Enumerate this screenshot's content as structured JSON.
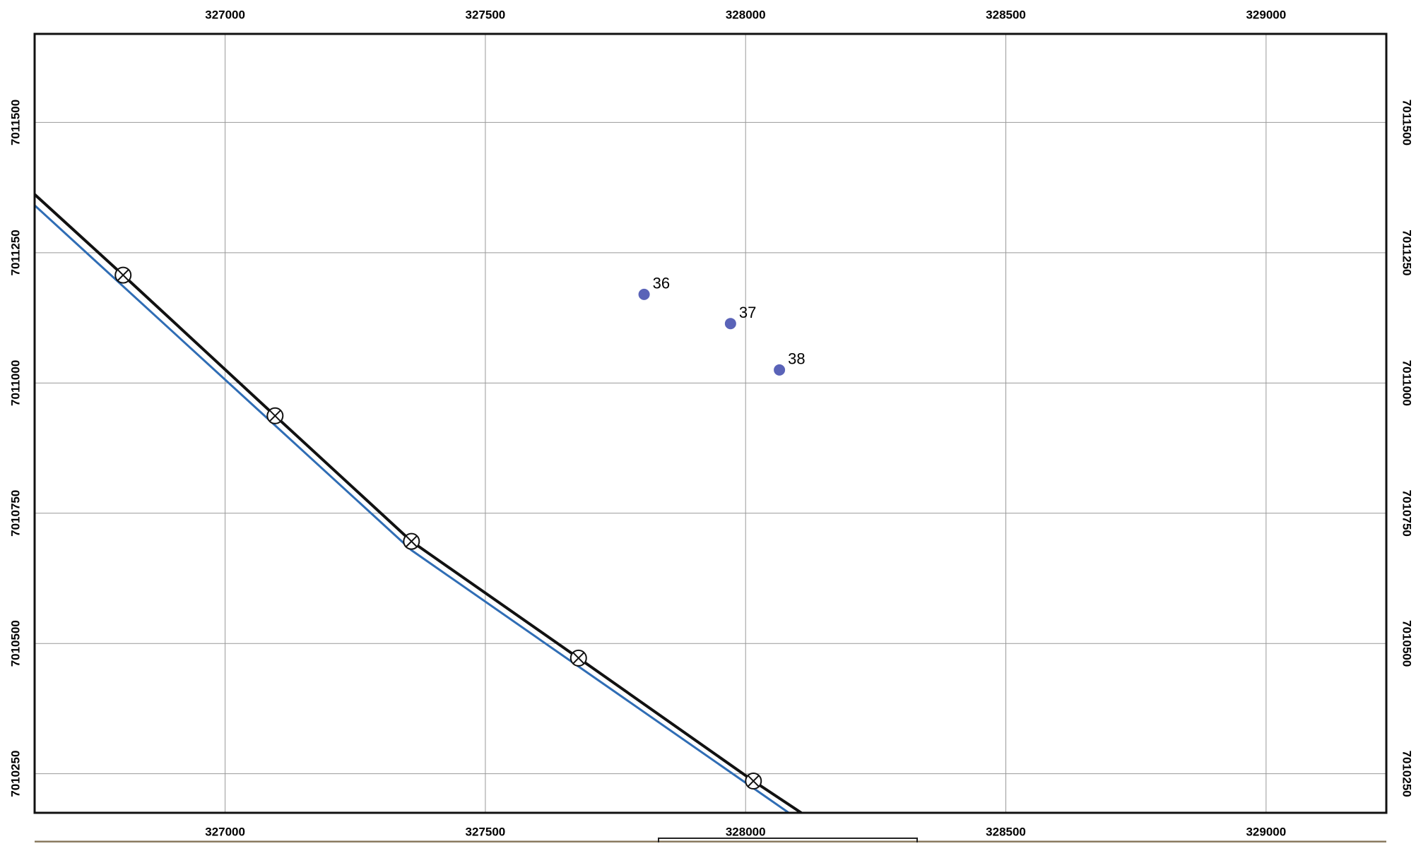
{
  "map": {
    "xlim": [
      326634,
      329231
    ],
    "ylim": [
      7010175,
      7011670
    ],
    "xticks": [
      327000,
      327500,
      328000,
      328500,
      329000
    ],
    "yticks": [
      7010250,
      7010500,
      7010750,
      7011000,
      7011250,
      7011500
    ],
    "grid": true,
    "lines": [
      {
        "color": "#111111",
        "x": [
          326634,
          326804,
          327096,
          327358,
          327679,
          328015,
          328107
        ],
        "y": [
          7011362,
          7011207,
          7010937,
          7010696,
          7010472,
          7010236,
          7010175
        ]
      },
      {
        "color": "#2f6db5",
        "x": [
          326634,
          327358,
          328083
        ],
        "y": [
          7011341,
          7010679,
          7010175
        ]
      }
    ],
    "markers": {
      "x": [
        326804,
        327096,
        327358,
        327679,
        328015
      ],
      "y": [
        7011207,
        7010937,
        7010696,
        7010472,
        7010236
      ]
    },
    "points": {
      "color": "#5a63b8",
      "labels": [
        "36",
        "37",
        "38"
      ],
      "x": [
        327805,
        327971,
        328065
      ],
      "y": [
        7011170,
        7011114,
        7011025
      ]
    }
  }
}
